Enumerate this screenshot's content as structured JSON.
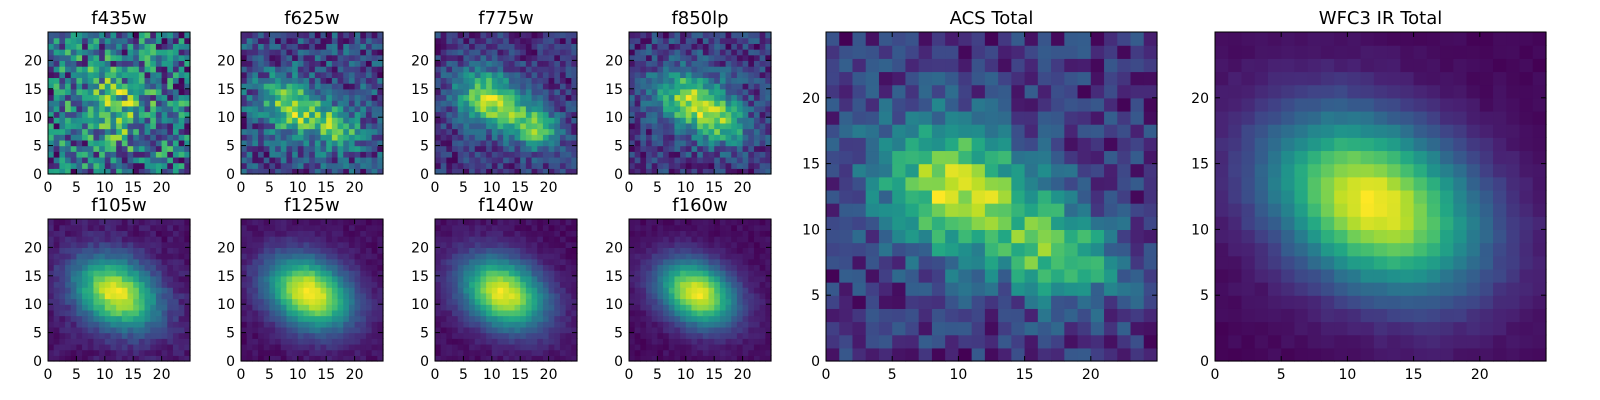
{
  "chart_data": [
    {
      "type": "heatmap",
      "title": "f435w",
      "xlim": [
        0,
        25
      ],
      "ylim": [
        0,
        25
      ],
      "xticks": [
        "0",
        "5",
        "10",
        "15",
        "20"
      ],
      "yticks": [
        "0",
        "5",
        "10",
        "15",
        "20"
      ],
      "colormap": "viridis",
      "grid": false,
      "model": {
        "noise": 0.55,
        "components": [
          {
            "x": 12,
            "y": 12,
            "sx": 5,
            "sy": 4,
            "angle": -35,
            "amp": 0.25
          }
        ]
      }
    },
    {
      "type": "heatmap",
      "title": "f625w",
      "xlim": [
        0,
        25
      ],
      "ylim": [
        0,
        25
      ],
      "xticks": [
        "0",
        "5",
        "10",
        "15",
        "20"
      ],
      "yticks": [
        "0",
        "5",
        "10",
        "15",
        "20"
      ],
      "colormap": "viridis",
      "grid": false,
      "model": {
        "noise": 0.4,
        "components": [
          {
            "x": 9,
            "y": 12,
            "sx": 4,
            "sy": 3,
            "angle": -30,
            "amp": 0.6
          },
          {
            "x": 17,
            "y": 8,
            "sx": 3,
            "sy": 2.5,
            "angle": -30,
            "amp": 0.45
          }
        ]
      }
    },
    {
      "type": "heatmap",
      "title": "f775w",
      "xlim": [
        0,
        25
      ],
      "ylim": [
        0,
        25
      ],
      "xticks": [
        "0",
        "5",
        "10",
        "15",
        "20"
      ],
      "yticks": [
        "0",
        "5",
        "10",
        "15",
        "20"
      ],
      "colormap": "viridis",
      "grid": false,
      "model": {
        "noise": 0.3,
        "components": [
          {
            "x": 10,
            "y": 13,
            "sx": 4.5,
            "sy": 3.2,
            "angle": -30,
            "amp": 0.75
          },
          {
            "x": 18,
            "y": 8,
            "sx": 3,
            "sy": 2.5,
            "angle": -30,
            "amp": 0.55
          }
        ]
      }
    },
    {
      "type": "heatmap",
      "title": "f850lp",
      "xlim": [
        0,
        25
      ],
      "ylim": [
        0,
        25
      ],
      "xticks": [
        "0",
        "5",
        "10",
        "15",
        "20"
      ],
      "yticks": [
        "0",
        "5",
        "10",
        "15",
        "20"
      ],
      "colormap": "viridis",
      "grid": false,
      "model": {
        "noise": 0.35,
        "components": [
          {
            "x": 11,
            "y": 13,
            "sx": 4.5,
            "sy": 3.5,
            "angle": -30,
            "amp": 0.7
          },
          {
            "x": 17,
            "y": 9,
            "sx": 3,
            "sy": 2.5,
            "angle": -30,
            "amp": 0.45
          }
        ]
      }
    },
    {
      "type": "heatmap",
      "title": "ACS Total",
      "xlim": [
        0,
        25
      ],
      "ylim": [
        0,
        25
      ],
      "xticks": [
        "0",
        "5",
        "10",
        "15",
        "20"
      ],
      "yticks": [
        "0",
        "5",
        "10",
        "15",
        "20"
      ],
      "colormap": "viridis",
      "grid": false,
      "model": {
        "noise": 0.3,
        "components": [
          {
            "x": 10,
            "y": 13,
            "sx": 4.5,
            "sy": 3.5,
            "angle": -30,
            "amp": 0.75
          },
          {
            "x": 18,
            "y": 8,
            "sx": 3,
            "sy": 2.5,
            "angle": -30,
            "amp": 0.55
          }
        ]
      }
    },
    {
      "type": "heatmap",
      "title": "WFC3 IR Total",
      "xlim": [
        0,
        25
      ],
      "ylim": [
        0,
        25
      ],
      "xticks": [
        "0",
        "5",
        "10",
        "15",
        "20"
      ],
      "yticks": [
        "0",
        "5",
        "10",
        "15",
        "20"
      ],
      "colormap": "viridis",
      "grid": false,
      "model": {
        "noise": 0.04,
        "components": [
          {
            "x": 12,
            "y": 12,
            "sx": 6,
            "sy": 4.2,
            "angle": -30,
            "amp": 1.0
          }
        ]
      }
    },
    {
      "type": "heatmap",
      "title": "f105w",
      "xlim": [
        0,
        25
      ],
      "ylim": [
        0,
        25
      ],
      "xticks": [
        "0",
        "5",
        "10",
        "15",
        "20"
      ],
      "yticks": [
        "0",
        "5",
        "10",
        "15",
        "20"
      ],
      "colormap": "viridis",
      "grid": false,
      "model": {
        "noise": 0.12,
        "components": [
          {
            "x": 12,
            "y": 12,
            "sx": 5.5,
            "sy": 4,
            "angle": -30,
            "amp": 1.0
          }
        ]
      }
    },
    {
      "type": "heatmap",
      "title": "f125w",
      "xlim": [
        0,
        25
      ],
      "ylim": [
        0,
        25
      ],
      "xticks": [
        "0",
        "5",
        "10",
        "15",
        "20"
      ],
      "yticks": [
        "0",
        "5",
        "10",
        "15",
        "20"
      ],
      "colormap": "viridis",
      "grid": false,
      "model": {
        "noise": 0.08,
        "components": [
          {
            "x": 12,
            "y": 12,
            "sx": 5.5,
            "sy": 4,
            "angle": -30,
            "amp": 1.0
          }
        ]
      }
    },
    {
      "type": "heatmap",
      "title": "f140w",
      "xlim": [
        0,
        25
      ],
      "ylim": [
        0,
        25
      ],
      "xticks": [
        "0",
        "5",
        "10",
        "15",
        "20"
      ],
      "yticks": [
        "0",
        "5",
        "10",
        "15",
        "20"
      ],
      "colormap": "viridis",
      "grid": false,
      "model": {
        "noise": 0.08,
        "components": [
          {
            "x": 12,
            "y": 12,
            "sx": 5.5,
            "sy": 4,
            "angle": -30,
            "amp": 1.0
          }
        ]
      }
    },
    {
      "type": "heatmap",
      "title": "f160w",
      "xlim": [
        0,
        25
      ],
      "ylim": [
        0,
        25
      ],
      "xticks": [
        "0",
        "5",
        "10",
        "15",
        "20"
      ],
      "yticks": [
        "0",
        "5",
        "10",
        "15",
        "20"
      ],
      "colormap": "viridis",
      "grid": false,
      "model": {
        "noise": 0.07,
        "components": [
          {
            "x": 12,
            "y": 12,
            "sx": 5,
            "sy": 3.6,
            "angle": -30,
            "amp": 1.0
          }
        ]
      }
    }
  ]
}
